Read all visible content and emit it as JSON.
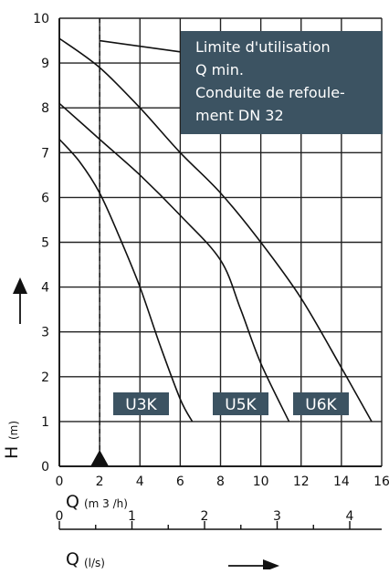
{
  "chart_data": {
    "type": "line",
    "x_axis": {
      "label": "Q",
      "unit": "(m 3 /h)",
      "range": [
        0,
        16
      ],
      "ticks": [
        "0",
        "2",
        "4",
        "6",
        "8",
        "10",
        "12",
        "14",
        "16"
      ]
    },
    "x2_axis": {
      "label": "Q",
      "unit": "(l/s)",
      "range": [
        0,
        4.44
      ],
      "ticks": [
        "0",
        "1",
        "2",
        "3",
        "4"
      ]
    },
    "y_axis": {
      "label": "H",
      "unit": "(m)",
      "range": [
        0,
        10
      ],
      "ticks": [
        "0",
        "1",
        "2",
        "3",
        "4",
        "5",
        "6",
        "7",
        "8",
        "9",
        "10"
      ]
    },
    "grid": true,
    "series": [
      {
        "name": "U3K",
        "color": "#111111",
        "points": [
          [
            0,
            7.3
          ],
          [
            1,
            6.8
          ],
          [
            2,
            6.1
          ],
          [
            3,
            5.1
          ],
          [
            4,
            4.0
          ],
          [
            5,
            2.7
          ],
          [
            6,
            1.5
          ],
          [
            6.6,
            1.0
          ]
        ]
      },
      {
        "name": "U5K",
        "color": "#111111",
        "points": [
          [
            0,
            8.1
          ],
          [
            2,
            7.3
          ],
          [
            4,
            6.5
          ],
          [
            6,
            5.6
          ],
          [
            8,
            4.6
          ],
          [
            9,
            3.5
          ],
          [
            10,
            2.3
          ],
          [
            11.4,
            1.0
          ]
        ]
      },
      {
        "name": "U6K",
        "color": "#111111",
        "points": [
          [
            0,
            9.55
          ],
          [
            2,
            8.9
          ],
          [
            4,
            8.0
          ],
          [
            6,
            7.0
          ],
          [
            8,
            6.1
          ],
          [
            10,
            5.0
          ],
          [
            12,
            3.75
          ],
          [
            14,
            2.2
          ],
          [
            15.5,
            1.0
          ]
        ]
      }
    ],
    "min_flow_line": {
      "x": 2,
      "marker": "triangle"
    },
    "annotation_lines": [
      {
        "from": [
          2,
          9.5
        ],
        "to": [
          6,
          9.25
        ]
      }
    ],
    "annotation": {
      "lines": [
        "Limite d'utilisation",
        "Q min.",
        "Conduite de refoule-",
        "ment DN 32"
      ],
      "background": "#3c5362"
    },
    "label_color": "#3c5362"
  }
}
